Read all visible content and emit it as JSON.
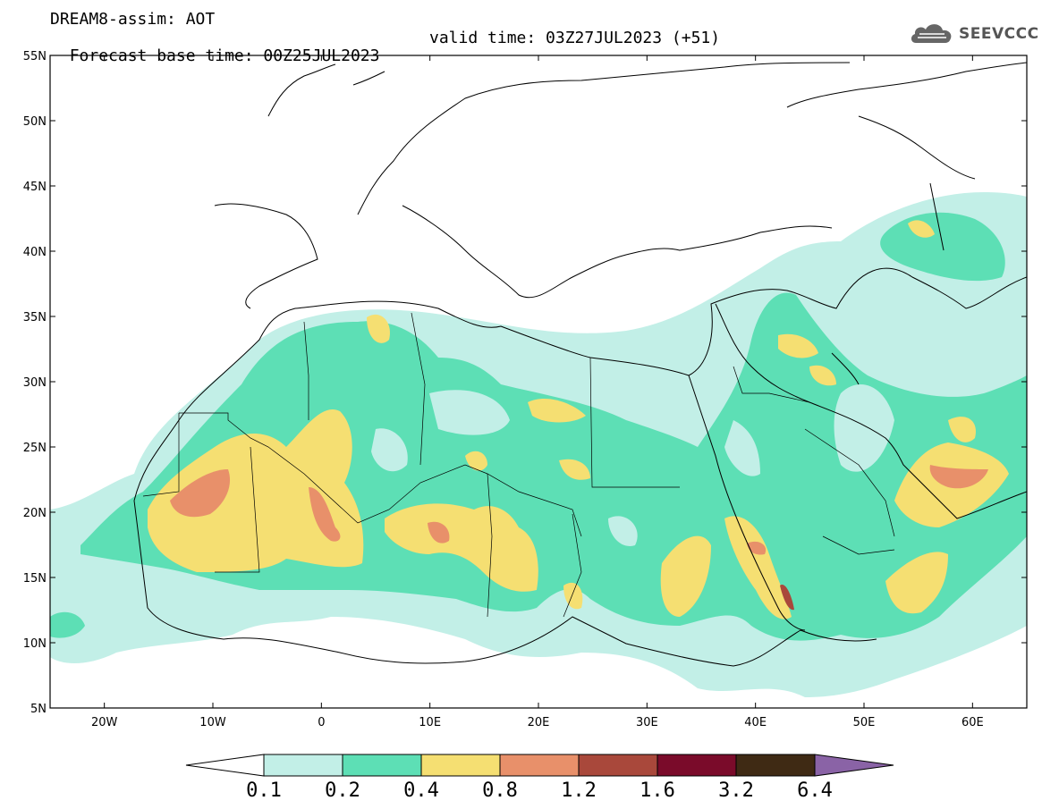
{
  "header": {
    "model_line": "DREAM8-assim: AOT",
    "base_time_line": "Forecast base time: 00Z25JUL2023",
    "valid_time_line": "valid time: 03Z27JUL2023 (+51)"
  },
  "logo": {
    "text": "SEEVCCC",
    "icon": "cloud-logo-icon"
  },
  "map": {
    "lon_range": [
      -25,
      65
    ],
    "lat_range": [
      5,
      55
    ],
    "lat_labels": [
      "5N",
      "10N",
      "15N",
      "20N",
      "25N",
      "30N",
      "35N",
      "40N",
      "45N",
      "50N",
      "55N"
    ],
    "lon_labels": [
      "20W",
      "10W",
      "0",
      "10E",
      "20E",
      "30E",
      "40E",
      "50E",
      "60E"
    ]
  },
  "colorbar": {
    "labels": [
      "0.1",
      "0.2",
      "0.4",
      "0.8",
      "1.2",
      "1.6",
      "3.2",
      "6.4"
    ],
    "colors": [
      "#c2efe7",
      "#5ddfb5",
      "#f5df72",
      "#e8906a",
      "#a9483b",
      "#7a0b2a",
      "#3f2a14",
      "#8a63a6"
    ],
    "under_color": "#ffffff"
  }
}
